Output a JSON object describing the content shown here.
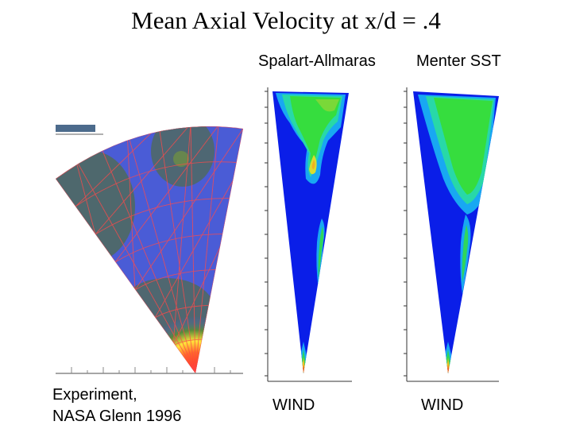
{
  "title": "Mean Axial Velocity at x/d = .4",
  "panels": {
    "spalart": {
      "label": "Spalart-Allmaras",
      "caption": "WIND"
    },
    "menter": {
      "label": "Menter SST",
      "caption": "WIND"
    },
    "experiment": {
      "caption_line1": "Experiment,",
      "caption_line2": "NASA Glenn 1996"
    }
  },
  "colors": {
    "cfd_blue": "#0a1ee8",
    "cfd_green": "#2fd33a",
    "exp_blue": "#4a5cd6",
    "grid_red": "#ff4a4a"
  }
}
